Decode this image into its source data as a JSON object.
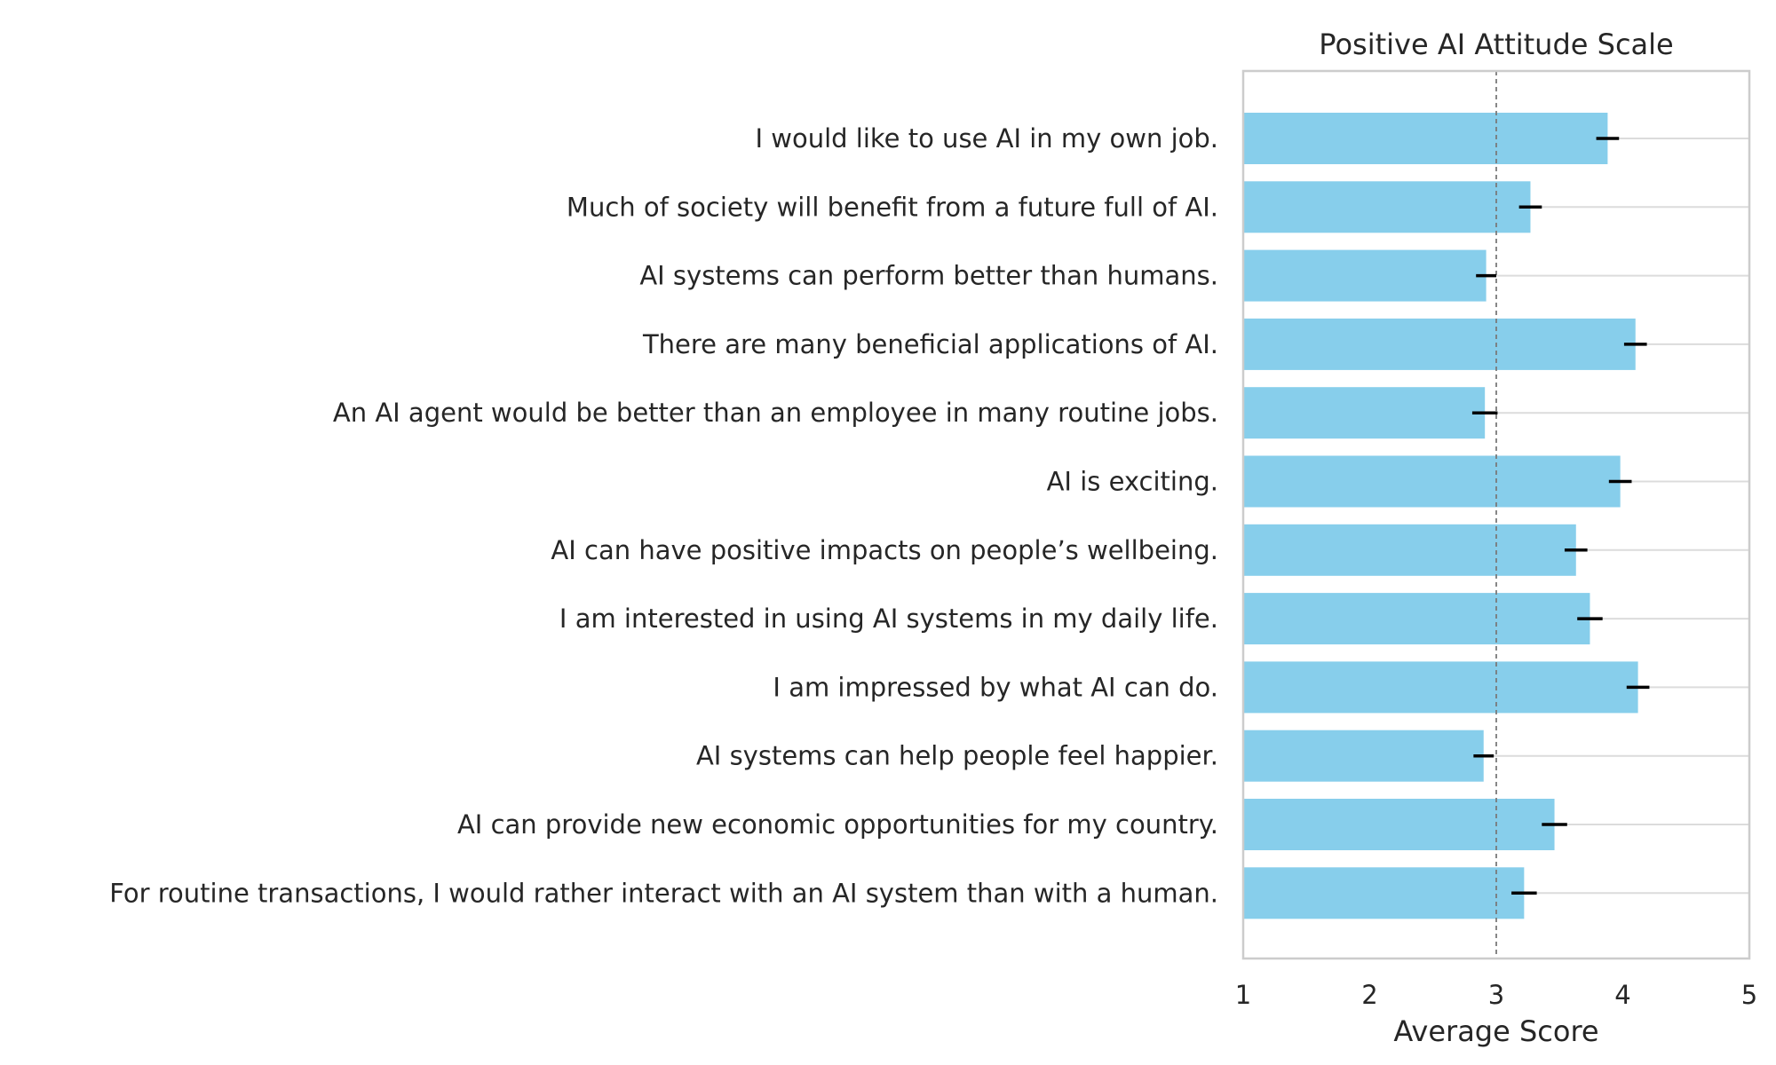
{
  "chart_data": {
    "type": "bar",
    "orientation": "horizontal",
    "title": "Positive AI Attitude Scale",
    "xlabel": "Average Score",
    "ylabel": "",
    "xlim": [
      1,
      5
    ],
    "xticks": [
      "1",
      "2",
      "3",
      "4",
      "5"
    ],
    "reference_line": 3,
    "grid": "horizontal lines at categories",
    "categories": [
      "I would like to use AI in my own job.",
      "Much of society will benefit from a future full of AI.",
      "AI systems can perform better than humans.",
      "There are many beneficial applications of AI.",
      "An AI agent would be better than an employee in many routine jobs.",
      "AI is exciting.",
      "AI can have positive impacts on people’s wellbeing.",
      "I am interested in using AI systems in my daily life.",
      "I am impressed by what AI can do.",
      "AI systems can help people feel happier.",
      "AI can provide new economic opportunities for my country.",
      "For routine transactions, I would rather interact with an AI system than with a human."
    ],
    "values": [
      3.88,
      3.27,
      2.92,
      4.1,
      2.91,
      3.98,
      3.63,
      3.74,
      4.12,
      2.9,
      3.46,
      3.22
    ],
    "errors": [
      0.09,
      0.09,
      0.08,
      0.09,
      0.1,
      0.09,
      0.09,
      0.1,
      0.09,
      0.08,
      0.1,
      0.1
    ],
    "colors": {
      "bar": "#87ceeb",
      "error_bar": "#000000",
      "grid": "#dcdcdc",
      "reference_line": "#7a7a7a",
      "frame": "#cccccc",
      "text": "#262626"
    }
  }
}
